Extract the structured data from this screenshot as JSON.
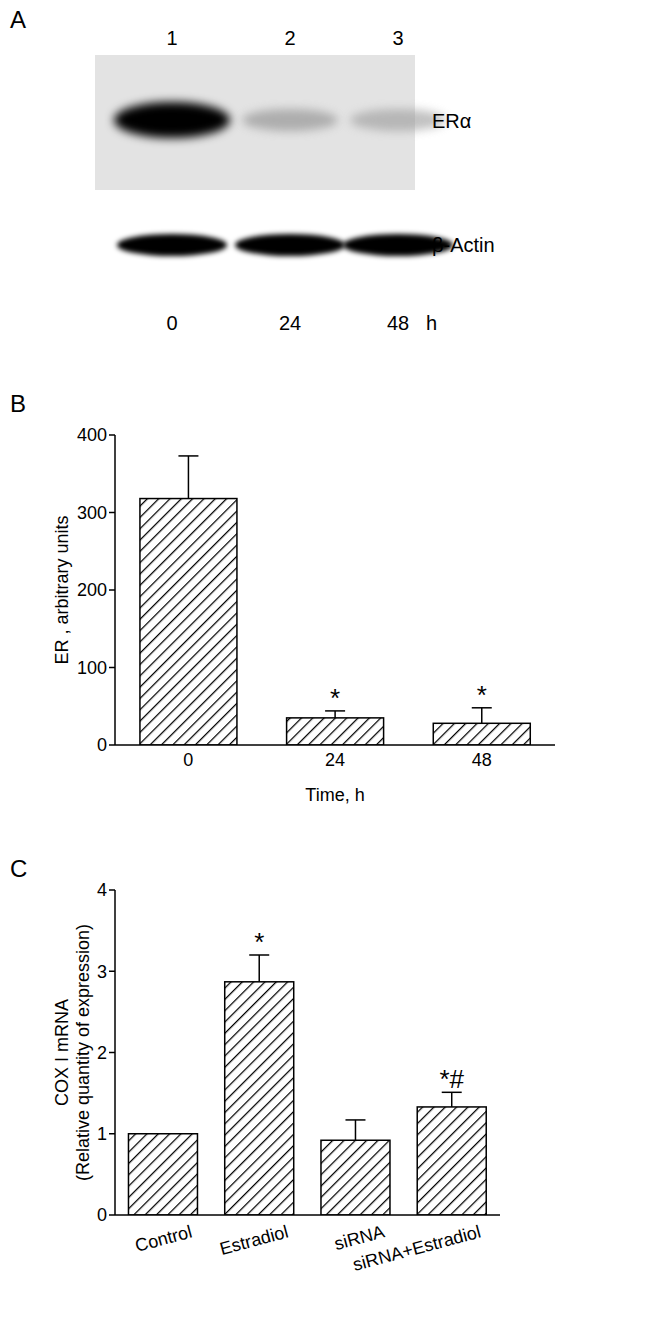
{
  "panel_a": {
    "panel": "A",
    "lanes": [
      "1",
      "2",
      "3"
    ],
    "bands": [
      "ERα",
      "β-Actin"
    ],
    "times": [
      "0",
      "24",
      "48"
    ],
    "time_unit": "h"
  },
  "chart_data": [
    {
      "panel": "B",
      "type": "bar",
      "categories": [
        "0",
        "24",
        "48"
      ],
      "values": [
        318,
        35,
        28
      ],
      "errors": [
        55,
        9,
        20
      ],
      "significance": [
        null,
        "*",
        "*"
      ],
      "ylabel": "ER , arbitrary units",
      "xlabel": "Time, h",
      "ylim": [
        0,
        400
      ],
      "yticks": [
        0,
        100,
        200,
        300,
        400
      ],
      "color": "#000000",
      "grid": false
    },
    {
      "panel": "C",
      "type": "bar",
      "categories": [
        "Control",
        "Estradiol",
        "siRNA",
        "siRNA+Estradiol"
      ],
      "values": [
        1,
        2.87,
        0.92,
        1.33
      ],
      "errors": [
        null,
        0.33,
        0.25,
        0.18
      ],
      "significance": [
        null,
        "*",
        null,
        "*#"
      ],
      "ylabel": [
        "COX I mRNA",
        "(Relative quantity of expression)"
      ],
      "ylim": [
        0,
        4
      ],
      "yticks": [
        0,
        1,
        2,
        3,
        4
      ],
      "color": "#000000",
      "grid": false
    }
  ]
}
